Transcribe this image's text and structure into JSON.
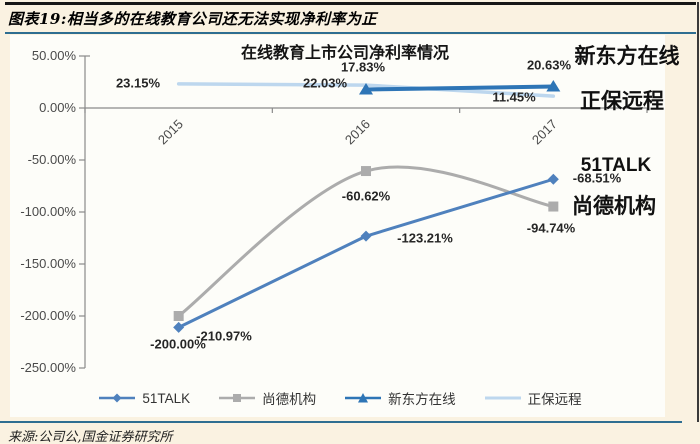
{
  "header": {
    "title": "图表19:相当多的在线教育公司还无法实现净利率为正"
  },
  "chart_data": {
    "type": "line",
    "title": "在线教育上市公司净利率情况",
    "categories": [
      "2015",
      "2016",
      "2017"
    ],
    "series": [
      {
        "name": "51TALK",
        "color": "#4F81BD",
        "marker": "diamond",
        "smooth": false,
        "width": 3,
        "values": [
          -210.97,
          -123.21,
          -68.51
        ],
        "point_labels": [
          "-210.97%",
          "-123.21%",
          "-68.51%"
        ]
      },
      {
        "name": "尚德机构",
        "color": "#ACACAC",
        "marker": "square",
        "smooth": true,
        "width": 3,
        "values": [
          -200.0,
          -60.62,
          -94.74
        ],
        "point_labels": [
          "-200.00%",
          "-60.62%",
          "-94.74%"
        ]
      },
      {
        "name": "新东方在线",
        "color": "#2E75B6",
        "marker": "triangle",
        "smooth": false,
        "width": 4,
        "values": [
          null,
          17.83,
          20.63
        ],
        "point_labels": [
          "",
          "17.83%",
          "20.63%"
        ]
      },
      {
        "name": "正保远程",
        "color": "#BDD7EE",
        "marker": "none",
        "smooth": false,
        "width": 3.5,
        "values": [
          23.15,
          22.03,
          11.45
        ],
        "point_labels": [
          "23.15%",
          "22.03%",
          "11.45%"
        ]
      }
    ],
    "xlabel": "",
    "ylabel": "",
    "ylim": [
      -250,
      50
    ],
    "ytick_step": 50,
    "ytick_labels": [
      "50.00%",
      "0.00%",
      "-50.00%",
      "-100.00%",
      "-150.00%",
      "-200.00%",
      "-250.00%"
    ],
    "ytick_values": [
      50,
      0,
      -50,
      -100,
      -150,
      -200,
      -250
    ],
    "grid": false,
    "legend_position": "bottom"
  },
  "footer": {
    "source": "来源:公司公,国金证券研究所"
  }
}
